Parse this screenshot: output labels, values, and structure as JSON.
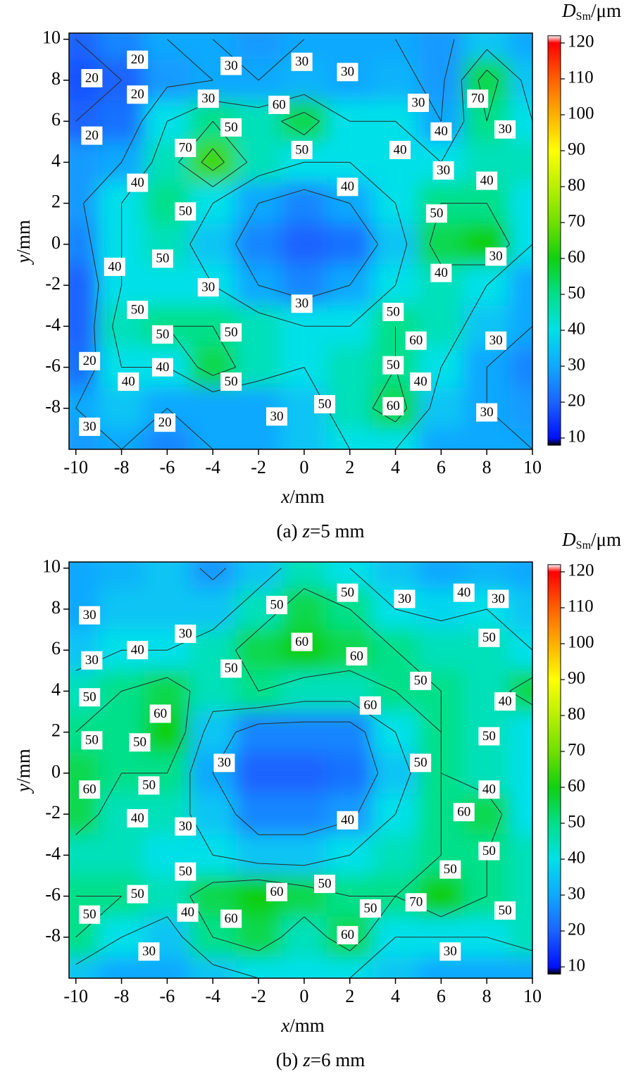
{
  "chart_data": [
    {
      "type": "contour",
      "xlabel": {
        "symbol": "x",
        "unit": "/mm"
      },
      "ylabel": {
        "symbol": "y",
        "unit": "/mm"
      },
      "caption": {
        "panel": "(a)",
        "symbol": "z",
        "rest": "=5 mm"
      },
      "colorbar_label": {
        "symbol": "D",
        "subscript": "Sm",
        "unit": "/μm"
      },
      "xlim": [
        -10.3,
        10
      ],
      "ylim": [
        -10,
        10.3
      ],
      "xticks": [
        -10,
        -8,
        -6,
        -4,
        -2,
        0,
        2,
        4,
        6,
        8,
        10
      ],
      "yticks": [
        -8,
        -6,
        -4,
        -2,
        0,
        2,
        4,
        6,
        8,
        10
      ],
      "clim": [
        8,
        122
      ],
      "cticks": [
        10,
        20,
        30,
        40,
        50,
        60,
        70,
        80,
        90,
        100,
        110,
        120
      ],
      "colorscale": [
        {
          "value": 8,
          "color": "#000000"
        },
        {
          "value": 10,
          "color": "#0010ff"
        },
        {
          "value": 20,
          "color": "#1a64ff"
        },
        {
          "value": 30,
          "color": "#10a8ff"
        },
        {
          "value": 40,
          "color": "#00e0e8"
        },
        {
          "value": 50,
          "color": "#00e08a"
        },
        {
          "value": 60,
          "color": "#10d010"
        },
        {
          "value": 70,
          "color": "#70e000"
        },
        {
          "value": 80,
          "color": "#b8f000"
        },
        {
          "value": 90,
          "color": "#ffff00"
        },
        {
          "value": 100,
          "color": "#ffb000"
        },
        {
          "value": 110,
          "color": "#ff6000"
        },
        {
          "value": 120,
          "color": "#ff0000"
        },
        {
          "value": 122,
          "color": "#ffffff"
        }
      ],
      "levels": [
        20,
        30,
        40,
        50,
        60,
        70
      ],
      "grid_x": [
        -10,
        -8,
        -6,
        -4,
        -2,
        0,
        2,
        4,
        6,
        8,
        10
      ],
      "grid_y": [
        10,
        8,
        6,
        4,
        2,
        0,
        -2,
        -4,
        -6,
        -8,
        -10
      ],
      "z": [
        [
          20,
          25,
          30,
          30,
          28,
          30,
          30,
          30,
          28,
          35,
          30
        ],
        [
          18,
          20,
          28,
          30,
          30,
          32,
          30,
          32,
          28,
          55,
          35
        ],
        [
          20,
          22,
          40,
          50,
          45,
          55,
          40,
          40,
          30,
          50,
          40
        ],
        [
          28,
          30,
          45,
          65,
          45,
          40,
          40,
          40,
          40,
          45,
          45
        ],
        [
          28,
          40,
          50,
          40,
          30,
          25,
          30,
          40,
          50,
          50,
          40
        ],
        [
          25,
          40,
          45,
          35,
          25,
          20,
          22,
          35,
          55,
          60,
          40
        ],
        [
          20,
          40,
          40,
          40,
          30,
          25,
          30,
          40,
          45,
          40,
          30
        ],
        [
          20,
          45,
          50,
          50,
          45,
          40,
          40,
          50,
          45,
          35,
          30
        ],
        [
          22,
          40,
          40,
          55,
          45,
          40,
          45,
          50,
          40,
          30,
          25
        ],
        [
          30,
          35,
          30,
          30,
          30,
          35,
          45,
          55,
          35,
          30,
          28
        ],
        [
          28,
          30,
          25,
          30,
          30,
          35,
          40,
          40,
          30,
          30,
          30
        ]
      ],
      "contour_labels": [
        {
          "x": -7.3,
          "y": 9.0,
          "value": 20
        },
        {
          "x": -3.2,
          "y": 8.7,
          "value": 30
        },
        {
          "x": -0.1,
          "y": 8.9,
          "value": 30
        },
        {
          "x": 1.9,
          "y": 8.4,
          "value": 30
        },
        {
          "x": -9.3,
          "y": 8.1,
          "value": 20
        },
        {
          "x": -7.3,
          "y": 7.3,
          "value": 20
        },
        {
          "x": -4.2,
          "y": 7.1,
          "value": 30
        },
        {
          "x": -1.1,
          "y": 6.8,
          "value": 60
        },
        {
          "x": 5.0,
          "y": 6.9,
          "value": 30
        },
        {
          "x": 7.6,
          "y": 7.1,
          "value": 70
        },
        {
          "x": -9.3,
          "y": 5.3,
          "value": 20
        },
        {
          "x": -3.2,
          "y": 5.7,
          "value": 50
        },
        {
          "x": 6.0,
          "y": 5.5,
          "value": 40
        },
        {
          "x": 8.8,
          "y": 5.6,
          "value": 30
        },
        {
          "x": -5.2,
          "y": 4.7,
          "value": 70
        },
        {
          "x": -0.1,
          "y": 4.6,
          "value": 50
        },
        {
          "x": 4.2,
          "y": 4.6,
          "value": 40
        },
        {
          "x": 6.1,
          "y": 3.6,
          "value": 30
        },
        {
          "x": 8.0,
          "y": 3.1,
          "value": 40
        },
        {
          "x": -7.3,
          "y": 3.0,
          "value": 40
        },
        {
          "x": 1.9,
          "y": 2.8,
          "value": 40
        },
        {
          "x": -5.2,
          "y": 1.6,
          "value": 50
        },
        {
          "x": 5.8,
          "y": 1.5,
          "value": 50
        },
        {
          "x": -6.2,
          "y": -0.7,
          "value": 50
        },
        {
          "x": 8.4,
          "y": -0.6,
          "value": 30
        },
        {
          "x": -8.3,
          "y": -1.1,
          "value": 40
        },
        {
          "x": 6.0,
          "y": -1.4,
          "value": 40
        },
        {
          "x": -4.2,
          "y": -2.1,
          "value": 30
        },
        {
          "x": -0.1,
          "y": -2.9,
          "value": 30
        },
        {
          "x": -7.3,
          "y": -3.2,
          "value": 50
        },
        {
          "x": 3.9,
          "y": -3.3,
          "value": 50
        },
        {
          "x": -6.2,
          "y": -4.4,
          "value": 50
        },
        {
          "x": -3.2,
          "y": -4.3,
          "value": 50
        },
        {
          "x": 4.9,
          "y": -4.7,
          "value": 60
        },
        {
          "x": 8.4,
          "y": -4.7,
          "value": 30
        },
        {
          "x": -9.4,
          "y": -5.7,
          "value": 20
        },
        {
          "x": 3.9,
          "y": -5.9,
          "value": 50
        },
        {
          "x": -6.2,
          "y": -6.0,
          "value": 40
        },
        {
          "x": -7.7,
          "y": -6.7,
          "value": 40
        },
        {
          "x": -3.2,
          "y": -6.7,
          "value": 50
        },
        {
          "x": 5.1,
          "y": -6.7,
          "value": 40
        },
        {
          "x": 0.9,
          "y": -7.8,
          "value": 50
        },
        {
          "x": 3.9,
          "y": -7.9,
          "value": 60
        },
        {
          "x": -1.2,
          "y": -8.4,
          "value": 30
        },
        {
          "x": 8.0,
          "y": -8.2,
          "value": 30
        },
        {
          "x": -9.4,
          "y": -8.9,
          "value": 30
        },
        {
          "x": -6.1,
          "y": -8.7,
          "value": 20
        }
      ]
    },
    {
      "type": "contour",
      "xlabel": {
        "symbol": "x",
        "unit": "/mm"
      },
      "ylabel": {
        "symbol": "y",
        "unit": "/mm"
      },
      "caption": {
        "panel": "(b)",
        "symbol": "z",
        "rest": "=6 mm"
      },
      "colorbar_label": {
        "symbol": "D",
        "subscript": "Sm",
        "unit": "/μm"
      },
      "xlim": [
        -10.3,
        10
      ],
      "ylim": [
        -10,
        10.3
      ],
      "xticks": [
        -10,
        -8,
        -6,
        -4,
        -2,
        0,
        2,
        4,
        6,
        8,
        10
      ],
      "yticks": [
        -8,
        -6,
        -4,
        -2,
        0,
        2,
        4,
        6,
        8,
        10
      ],
      "clim": [
        8,
        122
      ],
      "cticks": [
        10,
        20,
        30,
        40,
        50,
        60,
        70,
        80,
        90,
        100,
        110,
        120
      ],
      "colorscale": [
        {
          "value": 8,
          "color": "#000000"
        },
        {
          "value": 10,
          "color": "#0010ff"
        },
        {
          "value": 20,
          "color": "#1a64ff"
        },
        {
          "value": 30,
          "color": "#10a8ff"
        },
        {
          "value": 40,
          "color": "#00e0e8"
        },
        {
          "value": 50,
          "color": "#00e08a"
        },
        {
          "value": 60,
          "color": "#10d010"
        },
        {
          "value": 70,
          "color": "#70e000"
        },
        {
          "value": 80,
          "color": "#b8f000"
        },
        {
          "value": 90,
          "color": "#ffff00"
        },
        {
          "value": 100,
          "color": "#ffb000"
        },
        {
          "value": 110,
          "color": "#ff6000"
        },
        {
          "value": 120,
          "color": "#ff0000"
        },
        {
          "value": 122,
          "color": "#ffffff"
        }
      ],
      "levels": [
        30,
        40,
        50,
        60,
        70
      ],
      "grid_x": [
        -10,
        -8,
        -6,
        -4,
        -2,
        0,
        2,
        4,
        6,
        8,
        10
      ],
      "grid_y": [
        10,
        8,
        6,
        4,
        2,
        0,
        -2,
        -4,
        -6,
        -8,
        -10
      ],
      "z": [
        [
          30,
          32,
          35,
          28,
          35,
          45,
          40,
          35,
          30,
          32,
          30
        ],
        [
          30,
          35,
          35,
          35,
          45,
          55,
          50,
          40,
          38,
          40,
          35
        ],
        [
          35,
          40,
          40,
          45,
          55,
          60,
          55,
          50,
          45,
          45,
          40
        ],
        [
          45,
          50,
          55,
          45,
          50,
          45,
          45,
          50,
          50,
          45,
          55
        ],
        [
          50,
          50,
          60,
          35,
          25,
          25,
          25,
          40,
          50,
          45,
          40
        ],
        [
          55,
          50,
          50,
          30,
          20,
          20,
          22,
          35,
          50,
          45,
          40
        ],
        [
          55,
          45,
          45,
          35,
          25,
          25,
          28,
          40,
          50,
          55,
          40
        ],
        [
          45,
          45,
          40,
          40,
          35,
          35,
          40,
          45,
          50,
          50,
          45
        ],
        [
          50,
          50,
          45,
          55,
          60,
          55,
          50,
          50,
          60,
          50,
          45
        ],
        [
          50,
          40,
          35,
          50,
          55,
          45,
          55,
          40,
          40,
          40,
          45
        ],
        [
          35,
          30,
          30,
          35,
          40,
          40,
          40,
          35,
          30,
          30,
          30
        ]
      ],
      "contour_labels": [
        {
          "x": 1.9,
          "y": 8.8,
          "value": 50
        },
        {
          "x": 7.0,
          "y": 8.8,
          "value": 40
        },
        {
          "x": 4.4,
          "y": 8.5,
          "value": 30
        },
        {
          "x": 8.5,
          "y": 8.5,
          "value": 30
        },
        {
          "x": -1.2,
          "y": 8.2,
          "value": 50
        },
        {
          "x": -9.4,
          "y": 7.7,
          "value": 30
        },
        {
          "x": -5.2,
          "y": 6.8,
          "value": 30
        },
        {
          "x": -7.3,
          "y": 6.0,
          "value": 40
        },
        {
          "x": -0.1,
          "y": 6.4,
          "value": 60
        },
        {
          "x": 2.3,
          "y": 5.7,
          "value": 60
        },
        {
          "x": 8.1,
          "y": 6.6,
          "value": 50
        },
        {
          "x": -9.3,
          "y": 5.5,
          "value": 30
        },
        {
          "x": -3.2,
          "y": 5.1,
          "value": 50
        },
        {
          "x": 5.1,
          "y": 4.5,
          "value": 50
        },
        {
          "x": -9.4,
          "y": 3.7,
          "value": 50
        },
        {
          "x": 8.8,
          "y": 3.5,
          "value": 40
        },
        {
          "x": 2.9,
          "y": 3.3,
          "value": 60
        },
        {
          "x": -6.3,
          "y": 2.9,
          "value": 60
        },
        {
          "x": -9.3,
          "y": 1.6,
          "value": 50
        },
        {
          "x": -7.2,
          "y": 1.5,
          "value": 50
        },
        {
          "x": 8.1,
          "y": 1.8,
          "value": 50
        },
        {
          "x": -3.5,
          "y": 0.5,
          "value": 30
        },
        {
          "x": 5.1,
          "y": 0.5,
          "value": 50
        },
        {
          "x": -9.4,
          "y": -0.8,
          "value": 60
        },
        {
          "x": -6.8,
          "y": -0.6,
          "value": 50
        },
        {
          "x": 8.1,
          "y": -0.8,
          "value": 40
        },
        {
          "x": 7.0,
          "y": -1.9,
          "value": 60
        },
        {
          "x": -7.3,
          "y": -2.2,
          "value": 40
        },
        {
          "x": 1.9,
          "y": -2.3,
          "value": 40
        },
        {
          "x": -5.2,
          "y": -2.6,
          "value": 30
        },
        {
          "x": 8.1,
          "y": -3.8,
          "value": 50
        },
        {
          "x": -5.2,
          "y": -4.8,
          "value": 50
        },
        {
          "x": 6.4,
          "y": -4.7,
          "value": 50
        },
        {
          "x": 0.9,
          "y": -5.4,
          "value": 50
        },
        {
          "x": -1.2,
          "y": -5.8,
          "value": 60
        },
        {
          "x": -7.3,
          "y": -5.9,
          "value": 50
        },
        {
          "x": 4.9,
          "y": -6.3,
          "value": 70
        },
        {
          "x": 2.9,
          "y": -6.6,
          "value": 50
        },
        {
          "x": -5.1,
          "y": -6.8,
          "value": 40
        },
        {
          "x": -9.4,
          "y": -6.9,
          "value": 50
        },
        {
          "x": -3.2,
          "y": -7.1,
          "value": 60
        },
        {
          "x": 8.8,
          "y": -6.7,
          "value": 50
        },
        {
          "x": 1.9,
          "y": -7.9,
          "value": 60
        },
        {
          "x": -6.8,
          "y": -8.7,
          "value": 30
        },
        {
          "x": 6.4,
          "y": -8.7,
          "value": 30
        }
      ]
    }
  ]
}
